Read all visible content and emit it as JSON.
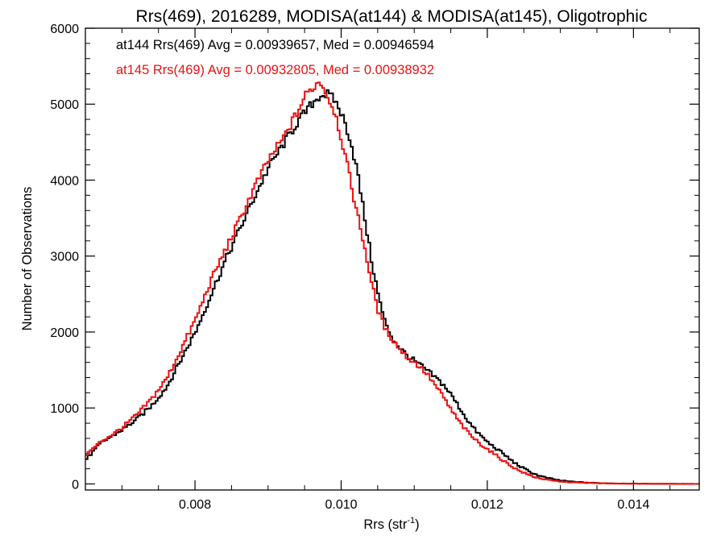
{
  "chart_data": {
    "type": "line",
    "title": "Rrs(469), 2016289, MODISA(at144) & MODISA(at145), Oligotrophic",
    "xlabel": {
      "main": "Rrs (str",
      "sup": "-1",
      "close": ")"
    },
    "ylabel": "Number of Observations",
    "xlim": [
      0.0065,
      0.0149
    ],
    "ylim": [
      -80,
      6000
    ],
    "x_ticks": [
      "0.008",
      "0.010",
      "0.012",
      "0.014"
    ],
    "y_ticks": [
      "0",
      "1000",
      "2000",
      "3000",
      "4000",
      "5000",
      "6000"
    ],
    "step_style": "histogram",
    "series": [
      {
        "name": "at144",
        "color": "#000000",
        "annotation": "at144 Rrs(469) Avg = 0.00939657, Med = 0.00946594",
        "points": [
          [
            0.0065,
            330
          ],
          [
            0.0067,
            540
          ],
          [
            0.0069,
            660
          ],
          [
            0.007,
            720
          ],
          [
            0.0072,
            860
          ],
          [
            0.0074,
            1040
          ],
          [
            0.0076,
            1280
          ],
          [
            0.0078,
            1650
          ],
          [
            0.008,
            2020
          ],
          [
            0.0082,
            2480
          ],
          [
            0.0084,
            2940
          ],
          [
            0.0086,
            3360
          ],
          [
            0.0088,
            3780
          ],
          [
            0.009,
            4180
          ],
          [
            0.0092,
            4480
          ],
          [
            0.0094,
            4780
          ],
          [
            0.0096,
            5020
          ],
          [
            0.0097,
            5120
          ],
          [
            0.0098,
            5130
          ],
          [
            0.0099,
            5050
          ],
          [
            0.01,
            4850
          ],
          [
            0.0101,
            4570
          ],
          [
            0.0102,
            4150
          ],
          [
            0.0103,
            3550
          ],
          [
            0.0104,
            2950
          ],
          [
            0.0105,
            2450
          ],
          [
            0.0106,
            2080
          ],
          [
            0.0107,
            1900
          ],
          [
            0.0108,
            1780
          ],
          [
            0.0109,
            1680
          ],
          [
            0.011,
            1610
          ],
          [
            0.0111,
            1540
          ],
          [
            0.0112,
            1460
          ],
          [
            0.0113,
            1380
          ],
          [
            0.0114,
            1290
          ],
          [
            0.0115,
            1160
          ],
          [
            0.0116,
            1010
          ],
          [
            0.0117,
            860
          ],
          [
            0.0118,
            730
          ],
          [
            0.0119,
            630
          ],
          [
            0.012,
            540
          ],
          [
            0.0121,
            470
          ],
          [
            0.0122,
            400
          ],
          [
            0.0123,
            320
          ],
          [
            0.0124,
            250
          ],
          [
            0.0125,
            195
          ],
          [
            0.0126,
            145
          ],
          [
            0.0127,
            105
          ],
          [
            0.0128,
            80
          ],
          [
            0.0129,
            60
          ],
          [
            0.013,
            42
          ],
          [
            0.0132,
            25
          ],
          [
            0.0134,
            15
          ],
          [
            0.0136,
            9
          ],
          [
            0.0138,
            6
          ],
          [
            0.014,
            4
          ],
          [
            0.0143,
            2
          ],
          [
            0.0146,
            1
          ],
          [
            0.0149,
            0
          ]
        ]
      },
      {
        "name": "at145",
        "color": "#ee1111",
        "annotation": "at145 Rrs(469) Avg = 0.00932805, Med = 0.00938932",
        "points": [
          [
            0.0065,
            390
          ],
          [
            0.0067,
            560
          ],
          [
            0.0069,
            680
          ],
          [
            0.007,
            750
          ],
          [
            0.0072,
            920
          ],
          [
            0.0074,
            1130
          ],
          [
            0.0076,
            1390
          ],
          [
            0.0078,
            1780
          ],
          [
            0.008,
            2180
          ],
          [
            0.0082,
            2670
          ],
          [
            0.0084,
            3080
          ],
          [
            0.0086,
            3480
          ],
          [
            0.0088,
            3910
          ],
          [
            0.009,
            4280
          ],
          [
            0.0092,
            4560
          ],
          [
            0.0094,
            4920
          ],
          [
            0.0095,
            5120
          ],
          [
            0.0096,
            5220
          ],
          [
            0.0097,
            5310
          ],
          [
            0.0098,
            5100
          ],
          [
            0.0099,
            4900
          ],
          [
            0.01,
            4500
          ],
          [
            0.0101,
            4050
          ],
          [
            0.0102,
            3580
          ],
          [
            0.0103,
            3150
          ],
          [
            0.0104,
            2650
          ],
          [
            0.0105,
            2250
          ],
          [
            0.0106,
            2020
          ],
          [
            0.0107,
            1890
          ],
          [
            0.0108,
            1760
          ],
          [
            0.0109,
            1660
          ],
          [
            0.011,
            1590
          ],
          [
            0.0111,
            1510
          ],
          [
            0.0112,
            1400
          ],
          [
            0.0113,
            1260
          ],
          [
            0.0114,
            1120
          ],
          [
            0.0115,
            960
          ],
          [
            0.0116,
            820
          ],
          [
            0.0117,
            700
          ],
          [
            0.0118,
            600
          ],
          [
            0.0119,
            520
          ],
          [
            0.012,
            450
          ],
          [
            0.0121,
            380
          ],
          [
            0.0122,
            310
          ],
          [
            0.0123,
            245
          ],
          [
            0.0124,
            185
          ],
          [
            0.0125,
            140
          ],
          [
            0.0126,
            100
          ],
          [
            0.0127,
            75
          ],
          [
            0.0128,
            55
          ],
          [
            0.0129,
            40
          ],
          [
            0.013,
            30
          ],
          [
            0.0132,
            18
          ],
          [
            0.0134,
            11
          ],
          [
            0.0136,
            7
          ],
          [
            0.0138,
            4
          ],
          [
            0.014,
            3
          ],
          [
            0.0143,
            1
          ],
          [
            0.0146,
            1
          ],
          [
            0.0149,
            0
          ]
        ]
      }
    ]
  }
}
